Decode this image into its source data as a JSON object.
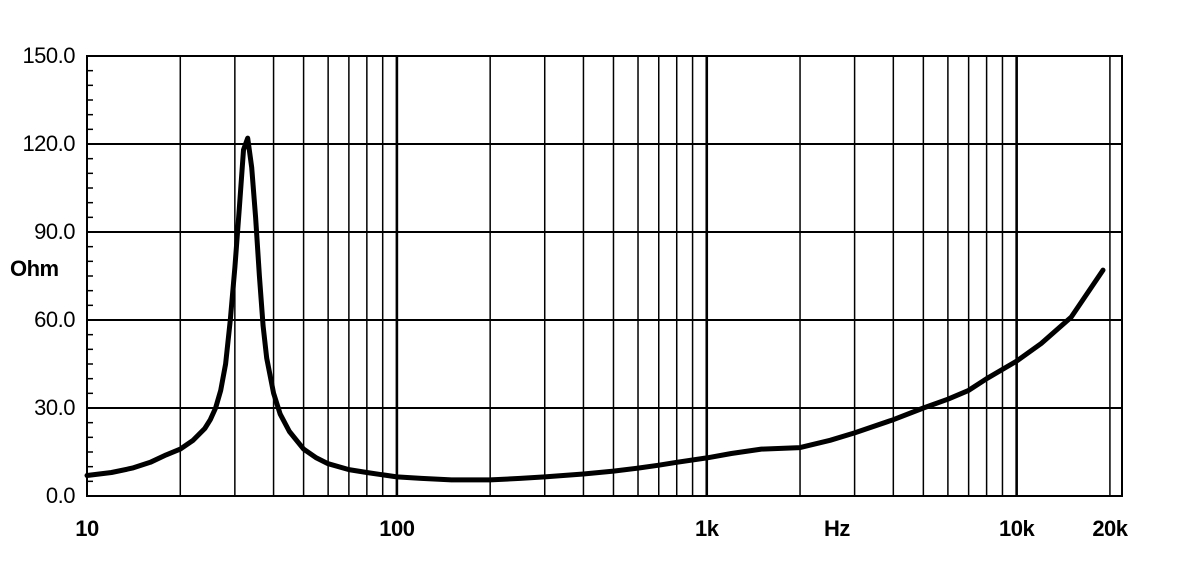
{
  "chart_data": {
    "type": "line",
    "xscale": "log",
    "xlim": [
      10,
      20000
    ],
    "ylim": [
      0,
      150
    ],
    "ylabel": "Ohm",
    "xlabel": "Hz",
    "grid": true,
    "yticks": [
      {
        "value": 0,
        "label": "0.0"
      },
      {
        "value": 30,
        "label": "30.0"
      },
      {
        "value": 60,
        "label": "60.0"
      },
      {
        "value": 90,
        "label": "90.0"
      },
      {
        "value": 120,
        "label": "120.0"
      },
      {
        "value": 150,
        "label": "150.0"
      }
    ],
    "xticks": [
      {
        "value": 10,
        "label": "10"
      },
      {
        "value": 100,
        "label": "100"
      },
      {
        "value": 1000,
        "label": "1k"
      },
      {
        "value": 10000,
        "label": "10k"
      },
      {
        "value": 20000,
        "label": "20k"
      }
    ],
    "series": [
      {
        "x": [
          10,
          12,
          14,
          16,
          18,
          20,
          22,
          24,
          25,
          26,
          27,
          28,
          29,
          30,
          31,
          32,
          33,
          34,
          35,
          36,
          37,
          38,
          40,
          42,
          45,
          50,
          55,
          60,
          70,
          80,
          100,
          120,
          150,
          200,
          250,
          300,
          400,
          500,
          600,
          700,
          800,
          1000,
          1200,
          1500,
          2000,
          2500,
          3000,
          4000,
          5000,
          6000,
          7000,
          8000,
          10000,
          12000,
          15000,
          19000
        ],
        "y": [
          7,
          8,
          9.5,
          11.5,
          14,
          16,
          19,
          23,
          26,
          30,
          36,
          45,
          60,
          78,
          98,
          118,
          122,
          112,
          95,
          75,
          58,
          47,
          35,
          28,
          22,
          16,
          13,
          11,
          9,
          8,
          6.5,
          6,
          5.5,
          5.5,
          6,
          6.5,
          7.5,
          8.5,
          9.5,
          10.5,
          11.5,
          13,
          14.5,
          16,
          16.5,
          19,
          21.5,
          26,
          30,
          33,
          36,
          40,
          46,
          52,
          61,
          77
        ]
      }
    ]
  }
}
